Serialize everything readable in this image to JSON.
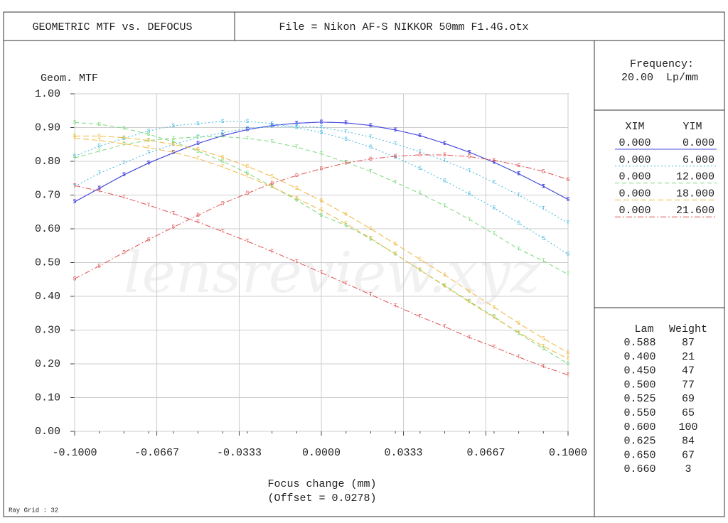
{
  "chart_data": {
    "type": "line",
    "title": "GEOMETRIC MTF vs. DEFOCUS",
    "file": "File = Nikon AF-S NIKKOR 50mm F1.4G.otx",
    "ylabel": "Geom. MTF",
    "xlabel": "Focus change (mm)",
    "offset_label": "(Offset = 0.0278)",
    "watermark": "lensreview.xyz",
    "ray_grid": "Ray Grid : 32",
    "frequency_label": "Frequency:",
    "frequency": "20.00  Lp/mm",
    "legend_headers": [
      "XIM",
      "YIM"
    ],
    "wavelength_headers": [
      "Lam",
      "Weight"
    ],
    "wavelengths": [
      [
        "0.588",
        "87"
      ],
      [
        "0.400",
        "21"
      ],
      [
        "0.450",
        "47"
      ],
      [
        "0.500",
        "77"
      ],
      [
        "0.525",
        "69"
      ],
      [
        "0.550",
        "65"
      ],
      [
        "0.600",
        "100"
      ],
      [
        "0.625",
        "84"
      ],
      [
        "0.650",
        "67"
      ],
      [
        "0.660",
        "3"
      ]
    ],
    "grid": true,
    "xlim": [
      -0.1,
      0.1
    ],
    "ylim": [
      0,
      1
    ],
    "xticks": [
      {
        "value": -0.1,
        "label": "-0.1000"
      },
      {
        "value": -0.0667,
        "label": "-0.0667"
      },
      {
        "value": -0.0333,
        "label": "-0.0333"
      },
      {
        "value": 0,
        "label": "0.0000"
      },
      {
        "value": 0.0333,
        "label": "0.0333"
      },
      {
        "value": 0.0667,
        "label": "0.0667"
      },
      {
        "value": 0.1,
        "label": "0.1000"
      }
    ],
    "yticks": [
      {
        "value": 0,
        "label": "0.00"
      },
      {
        "value": 0.1,
        "label": "0.10"
      },
      {
        "value": 0.2,
        "label": "0.20"
      },
      {
        "value": 0.3,
        "label": "0.30"
      },
      {
        "value": 0.4,
        "label": "0.40"
      },
      {
        "value": 0.5,
        "label": "0.50"
      },
      {
        "value": 0.6,
        "label": "0.60"
      },
      {
        "value": 0.7,
        "label": "0.70"
      },
      {
        "value": 0.8,
        "label": "0.80"
      },
      {
        "value": 0.9,
        "label": "0.90"
      },
      {
        "value": 1,
        "label": "1.00"
      }
    ],
    "x": [
      -0.1,
      -0.09,
      -0.08,
      -0.07,
      -0.06,
      -0.05,
      -0.04,
      -0.03,
      -0.02,
      -0.01,
      0,
      0.01,
      0.02,
      0.03,
      0.04,
      0.05,
      0.06,
      0.07,
      0.08,
      0.09,
      0.1
    ],
    "series": [
      {
        "xim": "0.000",
        "yim": "0.000",
        "marker": "S",
        "color": "#4848e0",
        "dash": "",
        "values": [
          0.68,
          0.72,
          0.76,
          0.795,
          0.825,
          0.853,
          0.876,
          0.894,
          0.906,
          0.913,
          0.916,
          0.914,
          0.906,
          0.893,
          0.876,
          0.853,
          0.827,
          0.797,
          0.763,
          0.726,
          0.687
        ]
      },
      {
        "xim": "0.000",
        "yim": "0.000",
        "marker": "T",
        "color": "#4848e0",
        "dash": "",
        "values": [
          0.68,
          0.72,
          0.76,
          0.795,
          0.825,
          0.853,
          0.876,
          0.894,
          0.906,
          0.913,
          0.916,
          0.914,
          0.906,
          0.893,
          0.876,
          0.853,
          0.827,
          0.797,
          0.763,
          0.726,
          0.687
        ]
      },
      {
        "xim": "0.000",
        "yim": "6.000",
        "marker": "S",
        "color": "#40b8e0",
        "dash": "2,3",
        "values": [
          0.815,
          0.845,
          0.868,
          0.89,
          0.905,
          0.912,
          0.918,
          0.918,
          0.912,
          0.9,
          0.885,
          0.866,
          0.842,
          0.812,
          0.779,
          0.742,
          0.703,
          0.662,
          0.617,
          0.572,
          0.525
        ]
      },
      {
        "xim": "0.000",
        "yim": "6.000",
        "marker": "T",
        "color": "#40b8e0",
        "dash": "2,3",
        "values": [
          0.725,
          0.765,
          0.795,
          0.825,
          0.85,
          0.87,
          0.885,
          0.897,
          0.903,
          0.905,
          0.9,
          0.888,
          0.872,
          0.852,
          0.828,
          0.802,
          0.772,
          0.737,
          0.7,
          0.66,
          0.617
        ]
      },
      {
        "xim": "0.000",
        "yim": "12.000",
        "marker": "S",
        "color": "#78d878",
        "dash": "6,4",
        "values": [
          0.915,
          0.91,
          0.898,
          0.88,
          0.858,
          0.83,
          0.8,
          0.765,
          0.725,
          0.685,
          0.64,
          0.61,
          0.57,
          0.525,
          0.478,
          0.432,
          0.385,
          0.34,
          0.29,
          0.245,
          0.2
        ]
      },
      {
        "xim": "0.000",
        "yim": "12.000",
        "marker": "T",
        "color": "#78d878",
        "dash": "6,4",
        "values": [
          0.81,
          0.83,
          0.85,
          0.862,
          0.868,
          0.872,
          0.873,
          0.868,
          0.858,
          0.842,
          0.822,
          0.797,
          0.77,
          0.738,
          0.705,
          0.668,
          0.628,
          0.585,
          0.54,
          0.505,
          0.465
        ]
      },
      {
        "xim": "0.000",
        "yim": "18.000",
        "marker": "S",
        "color": "#f0b840",
        "dash": "8,4",
        "values": [
          0.875,
          0.875,
          0.87,
          0.862,
          0.85,
          0.835,
          0.812,
          0.785,
          0.755,
          0.72,
          0.683,
          0.643,
          0.6,
          0.555,
          0.51,
          0.463,
          0.415,
          0.368,
          0.32,
          0.275,
          0.233
        ]
      },
      {
        "xim": "0.000",
        "yim": "18.000",
        "marker": "T",
        "color": "#f0b840",
        "dash": "8,4",
        "values": [
          0.868,
          0.862,
          0.852,
          0.84,
          0.827,
          0.808,
          0.783,
          0.755,
          0.724,
          0.69,
          0.655,
          0.615,
          0.572,
          0.525,
          0.478,
          0.43,
          0.383,
          0.337,
          0.293,
          0.252,
          0.215
        ]
      },
      {
        "xim": "0.000",
        "yim": "21.600",
        "marker": "S",
        "color": "#e05050",
        "dash": "8,3,2,3",
        "values": [
          0.452,
          0.49,
          0.53,
          0.568,
          0.605,
          0.64,
          0.675,
          0.705,
          0.735,
          0.758,
          0.778,
          0.795,
          0.807,
          0.815,
          0.819,
          0.819,
          0.814,
          0.803,
          0.788,
          0.77,
          0.746
        ]
      },
      {
        "xim": "0.000",
        "yim": "21.600",
        "marker": "T",
        "color": "#e05050",
        "dash": "8,3,2,3",
        "values": [
          0.728,
          0.712,
          0.693,
          0.67,
          0.645,
          0.62,
          0.592,
          0.563,
          0.533,
          0.502,
          0.47,
          0.438,
          0.405,
          0.372,
          0.34,
          0.31,
          0.278,
          0.25,
          0.22,
          0.192,
          0.167
        ]
      }
    ]
  }
}
